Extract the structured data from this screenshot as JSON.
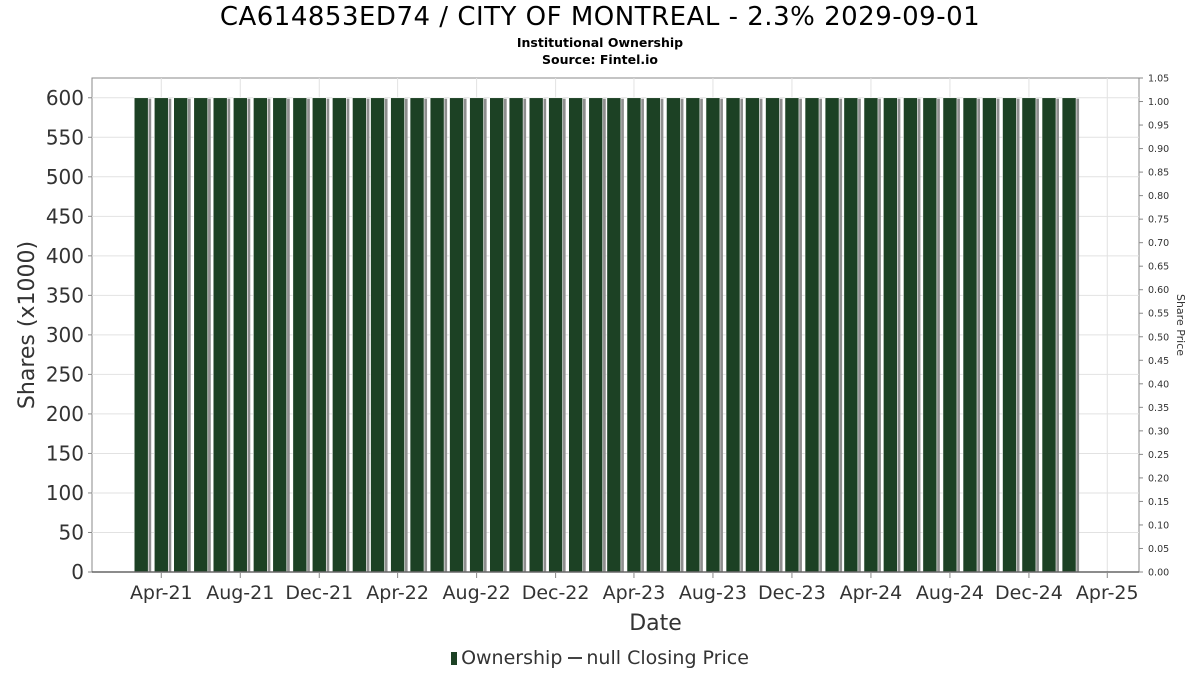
{
  "header": {
    "title": "CA614853ED74 / CITY OF MONTREAL - 2.3% 2029-09-01",
    "subtitle": "Institutional Ownership",
    "source": "Source: Fintel.io"
  },
  "legend": {
    "ownership": "Ownership",
    "price": "null Closing Price"
  },
  "colors": {
    "bar": "#1c4124",
    "bar_shadow": "#8e8e8e",
    "grid": "#e2e2e2",
    "axis": "#888888"
  },
  "chart_data": {
    "type": "bar",
    "title": "CA614853ED74 / CITY OF MONTREAL - 2.3% 2029-09-01",
    "xlabel": "Date",
    "ylabel": "Shares (x1000)",
    "y2label": "Share Price",
    "ylim": [
      0,
      625
    ],
    "y2lim": [
      0,
      1.05
    ],
    "yticks": [
      "0",
      "50",
      "100",
      "150",
      "200",
      "250",
      "300",
      "350",
      "400",
      "450",
      "500",
      "550",
      "600"
    ],
    "y2ticks": [
      "0.00",
      "0.05",
      "0.10",
      "0.15",
      "0.20",
      "0.25",
      "0.30",
      "0.35",
      "0.40",
      "0.45",
      "0.50",
      "0.55",
      "0.60",
      "0.65",
      "0.70",
      "0.75",
      "0.80",
      "0.85",
      "0.90",
      "0.95",
      "1.00",
      "1.05"
    ],
    "xlim": [
      "2020-12-15",
      "2025-05-20"
    ],
    "xticks": [
      {
        "date": "2021-04-01",
        "label": "Apr-21"
      },
      {
        "date": "2021-08-01",
        "label": "Aug-21"
      },
      {
        "date": "2021-12-01",
        "label": "Dec-21"
      },
      {
        "date": "2022-04-01",
        "label": "Apr-22"
      },
      {
        "date": "2022-08-01",
        "label": "Aug-22"
      },
      {
        "date": "2022-12-01",
        "label": "Dec-22"
      },
      {
        "date": "2023-04-01",
        "label": "Apr-23"
      },
      {
        "date": "2023-08-01",
        "label": "Aug-23"
      },
      {
        "date": "2023-12-01",
        "label": "Dec-23"
      },
      {
        "date": "2024-04-01",
        "label": "Apr-24"
      },
      {
        "date": "2024-08-01",
        "label": "Aug-24"
      },
      {
        "date": "2024-12-01",
        "label": "Dec-24"
      },
      {
        "date": "2025-04-01",
        "label": "Apr-25"
      }
    ],
    "series": [
      {
        "name": "Ownership",
        "x": [
          "2021-03-01",
          "2021-04-01",
          "2021-05-01",
          "2021-06-01",
          "2021-07-01",
          "2021-08-01",
          "2021-09-01",
          "2021-10-01",
          "2021-11-01",
          "2021-12-01",
          "2022-01-01",
          "2022-02-01",
          "2022-03-01",
          "2022-04-01",
          "2022-05-01",
          "2022-06-01",
          "2022-07-01",
          "2022-08-01",
          "2022-09-01",
          "2022-10-01",
          "2022-11-01",
          "2022-12-01",
          "2023-01-01",
          "2023-02-01",
          "2023-03-01",
          "2023-04-01",
          "2023-05-01",
          "2023-06-01",
          "2023-07-01",
          "2023-08-01",
          "2023-09-01",
          "2023-10-01",
          "2023-11-01",
          "2023-12-01",
          "2024-01-01",
          "2024-02-01",
          "2024-03-01",
          "2024-04-01",
          "2024-05-01",
          "2024-06-01",
          "2024-07-01",
          "2024-08-01",
          "2024-09-01",
          "2024-10-01",
          "2024-11-01",
          "2024-12-01",
          "2025-01-01",
          "2025-02-01"
        ],
        "values": [
          600,
          600,
          600,
          600,
          600,
          600,
          600,
          600,
          600,
          600,
          600,
          600,
          600,
          600,
          600,
          600,
          600,
          600,
          600,
          600,
          600,
          600,
          600,
          600,
          600,
          600,
          600,
          600,
          600,
          600,
          600,
          600,
          600,
          600,
          600,
          600,
          600,
          600,
          600,
          600,
          600,
          600,
          600,
          600,
          600,
          600,
          600,
          600
        ]
      }
    ],
    "grid": true,
    "legend_position": "bottom-center"
  }
}
